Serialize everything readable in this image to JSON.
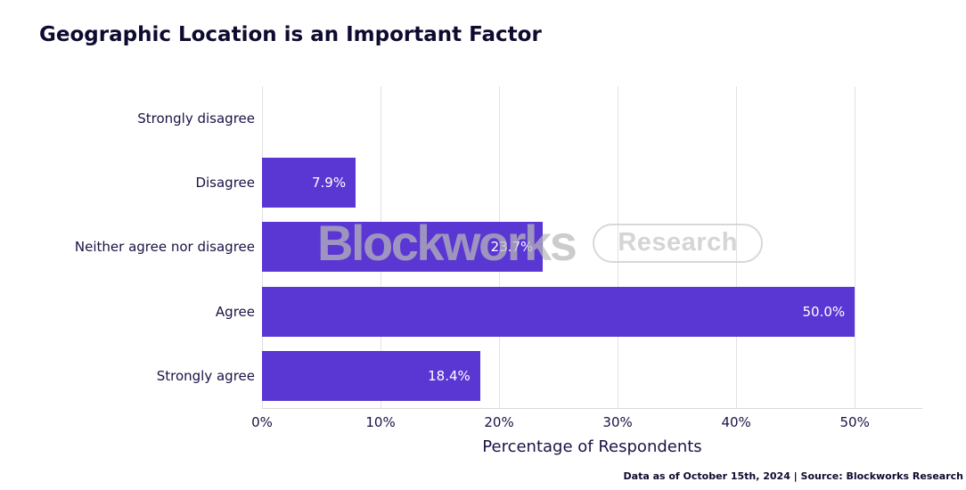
{
  "title": "Geographic Location is an Important Factor",
  "watermark": {
    "brand": "Blockworks",
    "badge": "Research"
  },
  "footer": "Data as of October 15th, 2024 | Source: Blockworks Research",
  "colors": {
    "bar": "#5A36D2",
    "grid": "#E2E2E2",
    "text_dark": "#191345",
    "title_text": "#0E0B30",
    "bar_label": "#FFFFFF",
    "watermark_gray": "#C8C8C8"
  },
  "chart_data": {
    "type": "bar",
    "orientation": "horizontal",
    "title": "Geographic Location is an Important Factor",
    "categories": [
      "Strongly disagree",
      "Disagree",
      "Neither agree nor disagree",
      "Agree",
      "Strongly agree"
    ],
    "values": [
      0,
      7.9,
      23.7,
      50.0,
      18.4
    ],
    "value_labels": [
      "",
      "7.9%",
      "23.7%",
      "50.0%",
      "18.4%"
    ],
    "xlabel": "Percentage of Respondents",
    "ylabel": "",
    "xlim": [
      0,
      55.7
    ],
    "xticks": [
      0,
      10,
      20,
      30,
      40,
      50
    ],
    "xtick_labels": [
      "0%",
      "10%",
      "20%",
      "30%",
      "40%",
      "50%"
    ],
    "grid": true,
    "legend": false
  }
}
